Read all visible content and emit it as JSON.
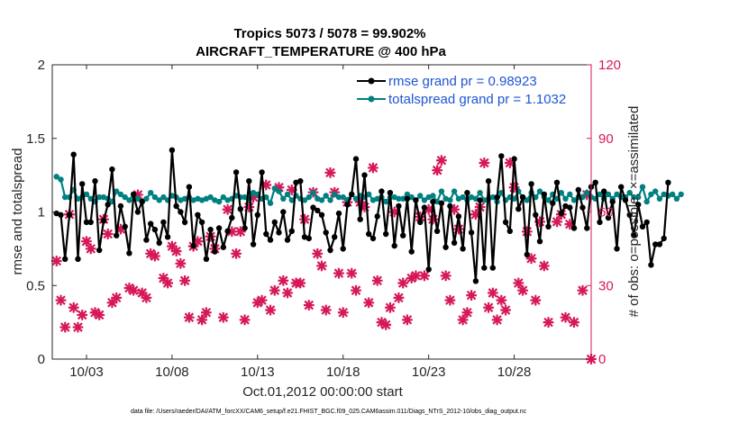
{
  "colors": {
    "rmse": "#000000",
    "spread": "#008080",
    "obs": "#d6185a",
    "legend_text": "#1f55d6",
    "axis": "#262626"
  },
  "chart_data": {
    "type": "line",
    "title": "Tropics 5073 / 5078 = 99.902%",
    "subtitle": "AIRCRAFT_TEMPERATURE @ 400 hPa",
    "xlabel": "Oct.01,2012 00:00:00 start",
    "ylabel": "rmse and totalspread",
    "y2label": "# of obs: o=possible; ×=assimilated",
    "footer": "data file: /Users/raeder/DAI/ATM_forcXX/CAM6_setup/f.e21.FHIST_BGC.f09_025.CAM6assim.011/Diags_NTrS_2012-10/obs_diag_output.nc",
    "xlim": [
      1.0,
      32.5
    ],
    "ylim": [
      0,
      2
    ],
    "y2lim": [
      0,
      120
    ],
    "xticks": [
      3,
      8,
      13,
      18,
      23,
      28
    ],
    "xtick_labels": [
      "10/03",
      "10/08",
      "10/13",
      "10/18",
      "10/23",
      "10/28"
    ],
    "yticks": [
      0,
      0.5,
      1,
      1.5,
      2
    ],
    "ytick_labels": [
      "0",
      "0.5",
      "1",
      "1.5",
      "2"
    ],
    "y2ticks": [
      0,
      30,
      60,
      90,
      120
    ],
    "y2tick_labels": [
      "0",
      "30",
      "60",
      "90",
      "120"
    ],
    "x_start": 1.25,
    "x_step": 0.25,
    "series": [
      {
        "name": "rmse grand pr = 0.98923",
        "axis": "left",
        "values": [
          0.99,
          0.98,
          0.68,
          0.98,
          1.39,
          0.68,
          1.19,
          0.93,
          0.93,
          1.21,
          0.74,
          0.94,
          1.05,
          1.29,
          0.84,
          1.04,
          0.9,
          0.72,
          1.12,
          1.0,
          1.07,
          0.81,
          0.92,
          0.88,
          0.79,
          0.93,
          0.83,
          1.42,
          1.04,
          1.0,
          0.93,
          1.17,
          0.77,
          0.98,
          0.93,
          0.68,
          0.88,
          0.73,
          0.89,
          0.76,
          0.87,
          0.96,
          1.27,
          1.02,
          0.89,
          1.21,
          0.78,
          0.98,
          1.27,
          0.85,
          0.81,
          0.93,
          0.86,
          1.0,
          0.81,
          0.87,
          1.2,
          1.21,
          0.83,
          0.82,
          1.03,
          1.01,
          0.98,
          0.86,
          0.74,
          0.83,
          0.99,
          0.75,
          1.05,
          1.12,
          1.36,
          0.95,
          1.25,
          0.85,
          0.82,
          0.97,
          1.14,
          0.85,
          1.13,
          0.77,
          1.04,
          0.84,
          1.09,
          0.73,
          1.08,
          0.93,
          1.03,
          0.61,
          1.07,
          0.87,
          1.06,
          0.76,
          1.04,
          0.79,
          0.97,
          0.75,
          1.13,
          0.86,
          0.53,
          1.08,
          0.62,
          1.21,
          0.62,
          1.1,
          1.38,
          0.93,
          0.87,
          1.36,
          1.02,
          1.1,
          0.71,
          1.19,
          0.98,
          0.8,
          1.12,
          0.9,
          1.06,
          1.2,
          0.99,
          1.04,
          1.03,
          0.89,
          1.15,
          1.03,
          0.89,
          1.17,
          1.2,
          0.93,
          1.14,
          0.96,
          1.07,
          0.75,
          1.17,
          1.08,
          0.98,
          0.84,
          1.05,
          0.9,
          0.93,
          0.64,
          0.78,
          0.78,
          0.82,
          1.2
        ]
      },
      {
        "name": "totalspread grand pr = 1.1032",
        "axis": "left",
        "values": [
          1.24,
          1.22,
          1.1,
          1.1,
          1.15,
          1.09,
          1.1,
          1.12,
          1.09,
          1.07,
          1.1,
          1.1,
          1.09,
          1.07,
          1.14,
          1.12,
          1.1,
          1.08,
          1.12,
          1.09,
          1.07,
          1.09,
          1.13,
          1.1,
          1.08,
          1.1,
          1.08,
          1.11,
          1.1,
          1.08,
          1.09,
          1.1,
          1.08,
          1.09,
          1.08,
          1.09,
          1.1,
          1.08,
          1.07,
          1.1,
          1.08,
          1.09,
          1.11,
          1.1,
          1.1,
          1.08,
          1.13,
          1.12,
          1.09,
          1.1,
          1.06,
          1.16,
          1.14,
          1.09,
          1.12,
          1.08,
          1.11,
          1.09,
          1.08,
          1.1,
          1.13,
          1.09,
          1.08,
          1.11,
          1.08,
          1.12,
          1.1,
          1.1,
          1.08,
          1.12,
          1.09,
          1.11,
          1.1,
          1.12,
          1.08,
          1.09,
          1.1,
          1.07,
          1.1,
          1.1,
          1.09,
          1.09,
          1.12,
          1.1,
          1.08,
          1.11,
          1.08,
          1.1,
          1.11,
          1.07,
          1.14,
          1.09,
          1.08,
          1.14,
          1.09,
          1.1,
          1.08,
          1.1,
          1.09,
          1.13,
          1.08,
          1.09,
          1.1,
          1.07,
          1.13,
          1.08,
          1.1,
          1.09,
          1.14,
          1.1,
          1.08,
          1.13,
          1.1,
          1.14,
          1.1,
          1.08,
          1.12,
          1.09,
          1.13,
          1.09,
          1.12,
          1.08,
          1.1,
          1.1,
          1.13,
          1.1,
          1.09,
          1.12,
          1.09,
          1.12,
          1.09,
          1.12,
          1.1,
          1.1,
          1.13,
          1.1,
          1.1,
          1.17,
          1.07,
          1.12,
          1.14,
          1.09,
          1.12,
          1.11,
          1.12,
          1.09,
          1.12
        ]
      }
    ],
    "obs_series": {
      "name": "# of obs (assimilated)",
      "axis": "right",
      "points": [
        [
          1.25,
          40
        ],
        [
          1.5,
          24
        ],
        [
          1.75,
          13
        ],
        [
          2.0,
          59
        ],
        [
          2.25,
          21
        ],
        [
          2.5,
          13
        ],
        [
          2.75,
          18
        ],
        [
          3.0,
          48
        ],
        [
          3.25,
          45
        ],
        [
          3.5,
          19
        ],
        [
          3.75,
          18
        ],
        [
          4.0,
          57
        ],
        [
          4.25,
          51
        ],
        [
          4.5,
          23
        ],
        [
          4.75,
          25
        ],
        [
          5.0,
          53
        ],
        [
          5.5,
          29
        ],
        [
          5.75,
          28
        ],
        [
          6.0,
          67
        ],
        [
          6.25,
          27
        ],
        [
          6.5,
          25
        ],
        [
          6.75,
          43
        ],
        [
          7.0,
          42
        ],
        [
          7.5,
          33
        ],
        [
          7.75,
          31
        ],
        [
          8.0,
          46
        ],
        [
          8.25,
          44
        ],
        [
          8.5,
          39
        ],
        [
          8.75,
          32
        ],
        [
          9.0,
          17
        ],
        [
          9.25,
          46
        ],
        [
          9.5,
          48
        ],
        [
          9.75,
          16
        ],
        [
          10.0,
          19
        ],
        [
          10.25,
          50
        ],
        [
          10.5,
          45
        ],
        [
          11.0,
          17
        ],
        [
          11.25,
          61
        ],
        [
          11.5,
          52
        ],
        [
          11.75,
          43
        ],
        [
          12.0,
          52
        ],
        [
          12.25,
          16
        ],
        [
          12.5,
          62
        ],
        [
          12.75,
          66
        ],
        [
          13.0,
          23
        ],
        [
          13.25,
          24
        ],
        [
          13.5,
          71
        ],
        [
          13.75,
          20
        ],
        [
          14.0,
          28
        ],
        [
          14.25,
          70
        ],
        [
          14.5,
          32
        ],
        [
          14.75,
          27
        ],
        [
          15.0,
          69
        ],
        [
          15.25,
          31
        ],
        [
          15.5,
          31
        ],
        [
          15.75,
          57
        ],
        [
          16.0,
          22
        ],
        [
          16.25,
          68
        ],
        [
          16.5,
          43
        ],
        [
          16.75,
          38
        ],
        [
          17.0,
          20
        ],
        [
          17.25,
          76
        ],
        [
          17.5,
          68
        ],
        [
          17.75,
          35
        ],
        [
          18.0,
          19
        ],
        [
          18.25,
          64
        ],
        [
          18.5,
          35
        ],
        [
          18.75,
          28
        ],
        [
          19.0,
          64
        ],
        [
          19.25,
          62
        ],
        [
          19.5,
          23
        ],
        [
          19.75,
          78
        ],
        [
          20.0,
          32
        ],
        [
          20.25,
          15
        ],
        [
          20.5,
          14
        ],
        [
          20.75,
          21
        ],
        [
          21.0,
          60
        ],
        [
          21.25,
          25
        ],
        [
          21.5,
          31
        ],
        [
          21.75,
          16
        ],
        [
          22.0,
          33
        ],
        [
          22.25,
          34
        ],
        [
          22.5,
          58
        ],
        [
          22.75,
          34
        ],
        [
          23.0,
          61
        ],
        [
          23.25,
          57
        ],
        [
          23.5,
          77
        ],
        [
          23.75,
          81
        ],
        [
          24.0,
          34
        ],
        [
          24.25,
          24
        ],
        [
          24.5,
          61
        ],
        [
          24.75,
          53
        ],
        [
          25.0,
          16
        ],
        [
          25.25,
          19
        ],
        [
          25.5,
          26
        ],
        [
          25.75,
          59
        ],
        [
          26.0,
          62
        ],
        [
          26.25,
          80
        ],
        [
          26.5,
          21
        ],
        [
          26.75,
          27
        ],
        [
          27.0,
          16
        ],
        [
          27.25,
          24
        ],
        [
          27.5,
          20
        ],
        [
          27.75,
          80
        ],
        [
          28.0,
          70
        ],
        [
          28.25,
          31
        ],
        [
          28.5,
          28
        ],
        [
          28.75,
          52
        ],
        [
          29.0,
          41
        ],
        [
          29.25,
          24
        ],
        [
          29.5,
          56
        ],
        [
          29.75,
          38
        ],
        [
          30.0,
          15
        ],
        [
          30.5,
          56
        ],
        [
          30.75,
          59
        ],
        [
          31.0,
          17
        ],
        [
          31.25,
          55
        ],
        [
          31.5,
          15
        ],
        [
          32.0,
          28
        ],
        [
          32.25,
          67
        ],
        [
          32.5,
          0
        ]
      ]
    }
  }
}
